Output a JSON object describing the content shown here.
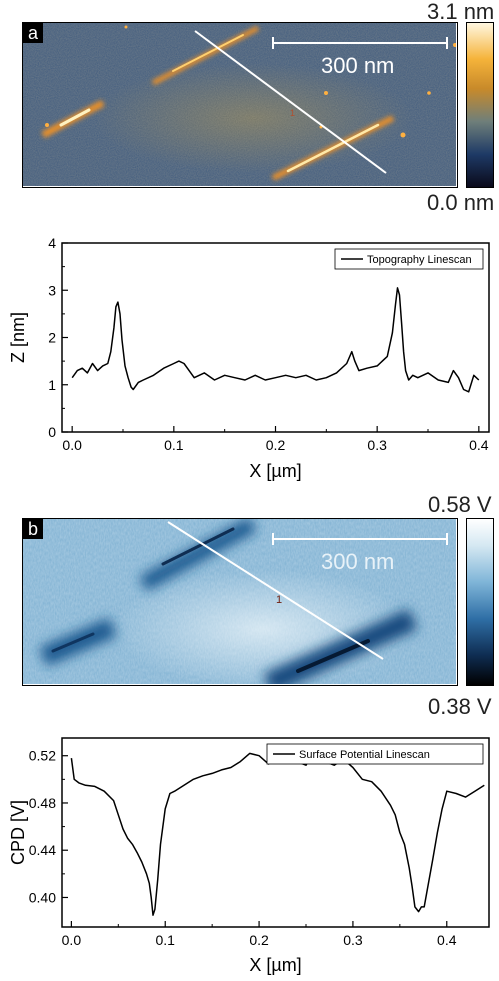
{
  "panels": [
    {
      "letter": "a",
      "scale_bar": "300 nm",
      "profile_marker": "1",
      "colorbar": {
        "max": "3.1 nm",
        "min": "0.0 nm",
        "colors": [
          "#0a0a1a",
          "#1e3a66",
          "#6f7f7a",
          "#c88a2a",
          "#f5b33a",
          "#fff7e0"
        ]
      }
    },
    {
      "letter": "b",
      "scale_bar": "300 nm",
      "profile_marker": "1",
      "colorbar": {
        "max": "0.58 V",
        "min": "0.38 V",
        "colors": [
          "#000000",
          "#0f2d52",
          "#2f6fa6",
          "#7fb5d8",
          "#d5e8f2",
          "#ffffff"
        ]
      }
    }
  ],
  "chart_data": [
    {
      "type": "line",
      "title": "",
      "xlabel": "X [µm]",
      "ylabel": "Z [nm]",
      "xlim": [
        -0.01,
        0.41
      ],
      "ylim": [
        0,
        4
      ],
      "xticks": [
        "0.0",
        "0.1",
        "0.2",
        "0.3",
        "0.4"
      ],
      "xtick_values": [
        0.0,
        0.1,
        0.2,
        0.3,
        0.4
      ],
      "yticks": [
        "0",
        "1",
        "2",
        "3",
        "4"
      ],
      "ytick_values": [
        0,
        1,
        2,
        3,
        4
      ],
      "legend": "top-right",
      "series": [
        {
          "name": "Topography Linescan",
          "color": "#000000",
          "x": [
            0.0,
            0.005,
            0.01,
            0.015,
            0.02,
            0.025,
            0.03,
            0.035,
            0.038,
            0.041,
            0.043,
            0.045,
            0.047,
            0.049,
            0.052,
            0.055,
            0.058,
            0.06,
            0.065,
            0.07,
            0.08,
            0.09,
            0.1,
            0.105,
            0.11,
            0.115,
            0.12,
            0.13,
            0.14,
            0.15,
            0.16,
            0.17,
            0.18,
            0.19,
            0.2,
            0.21,
            0.22,
            0.23,
            0.24,
            0.25,
            0.26,
            0.27,
            0.275,
            0.278,
            0.282,
            0.29,
            0.3,
            0.31,
            0.315,
            0.318,
            0.32,
            0.322,
            0.324,
            0.326,
            0.328,
            0.331,
            0.335,
            0.34,
            0.35,
            0.36,
            0.37,
            0.375,
            0.38,
            0.385,
            0.39,
            0.395,
            0.4
          ],
          "y": [
            1.15,
            1.3,
            1.35,
            1.25,
            1.45,
            1.3,
            1.4,
            1.45,
            1.7,
            2.2,
            2.65,
            2.75,
            2.5,
            1.95,
            1.4,
            1.15,
            0.95,
            0.9,
            1.05,
            1.1,
            1.2,
            1.35,
            1.45,
            1.5,
            1.45,
            1.3,
            1.15,
            1.25,
            1.1,
            1.2,
            1.15,
            1.1,
            1.2,
            1.1,
            1.15,
            1.2,
            1.15,
            1.2,
            1.1,
            1.15,
            1.25,
            1.45,
            1.7,
            1.5,
            1.3,
            1.35,
            1.4,
            1.6,
            2.1,
            2.7,
            3.05,
            2.9,
            2.3,
            1.7,
            1.3,
            1.1,
            1.2,
            1.15,
            1.25,
            1.1,
            1.05,
            1.3,
            1.15,
            0.9,
            0.85,
            1.2,
            1.1
          ]
        }
      ]
    },
    {
      "type": "line",
      "title": "",
      "xlabel": "X [µm]",
      "ylabel": "CPD [V]",
      "xlim": [
        -0.01,
        0.445
      ],
      "ylim": [
        0.375,
        0.535
      ],
      "xticks": [
        "0.0",
        "0.1",
        "0.2",
        "0.3",
        "0.4"
      ],
      "xtick_values": [
        0.0,
        0.1,
        0.2,
        0.3,
        0.4
      ],
      "yticks": [
        "0.40",
        "0.44",
        "0.48",
        "0.52"
      ],
      "ytick_values": [
        0.4,
        0.44,
        0.48,
        0.52
      ],
      "legend": "top-right",
      "series": [
        {
          "name": "Surface Potential Linescan",
          "color": "#000000",
          "x": [
            0.0,
            0.003,
            0.008,
            0.015,
            0.025,
            0.035,
            0.045,
            0.05,
            0.055,
            0.06,
            0.065,
            0.07,
            0.075,
            0.08,
            0.083,
            0.085,
            0.087,
            0.089,
            0.092,
            0.095,
            0.1,
            0.105,
            0.11,
            0.12,
            0.13,
            0.14,
            0.15,
            0.16,
            0.17,
            0.18,
            0.19,
            0.2,
            0.21,
            0.22,
            0.23,
            0.24,
            0.25,
            0.26,
            0.265,
            0.27,
            0.28,
            0.29,
            0.3,
            0.31,
            0.32,
            0.33,
            0.34,
            0.345,
            0.35,
            0.355,
            0.36,
            0.363,
            0.366,
            0.37,
            0.373,
            0.376,
            0.38,
            0.385,
            0.39,
            0.395,
            0.4,
            0.41,
            0.42,
            0.43,
            0.44
          ],
          "y": [
            0.518,
            0.5,
            0.497,
            0.495,
            0.494,
            0.49,
            0.482,
            0.47,
            0.458,
            0.45,
            0.445,
            0.438,
            0.43,
            0.42,
            0.412,
            0.4,
            0.385,
            0.39,
            0.415,
            0.445,
            0.475,
            0.488,
            0.49,
            0.495,
            0.5,
            0.503,
            0.505,
            0.508,
            0.51,
            0.515,
            0.522,
            0.52,
            0.513,
            0.518,
            0.522,
            0.515,
            0.512,
            0.526,
            0.52,
            0.515,
            0.512,
            0.517,
            0.51,
            0.5,
            0.498,
            0.49,
            0.478,
            0.47,
            0.455,
            0.445,
            0.425,
            0.41,
            0.392,
            0.388,
            0.392,
            0.392,
            0.41,
            0.432,
            0.455,
            0.475,
            0.49,
            0.488,
            0.485,
            0.49,
            0.495
          ]
        }
      ]
    }
  ]
}
